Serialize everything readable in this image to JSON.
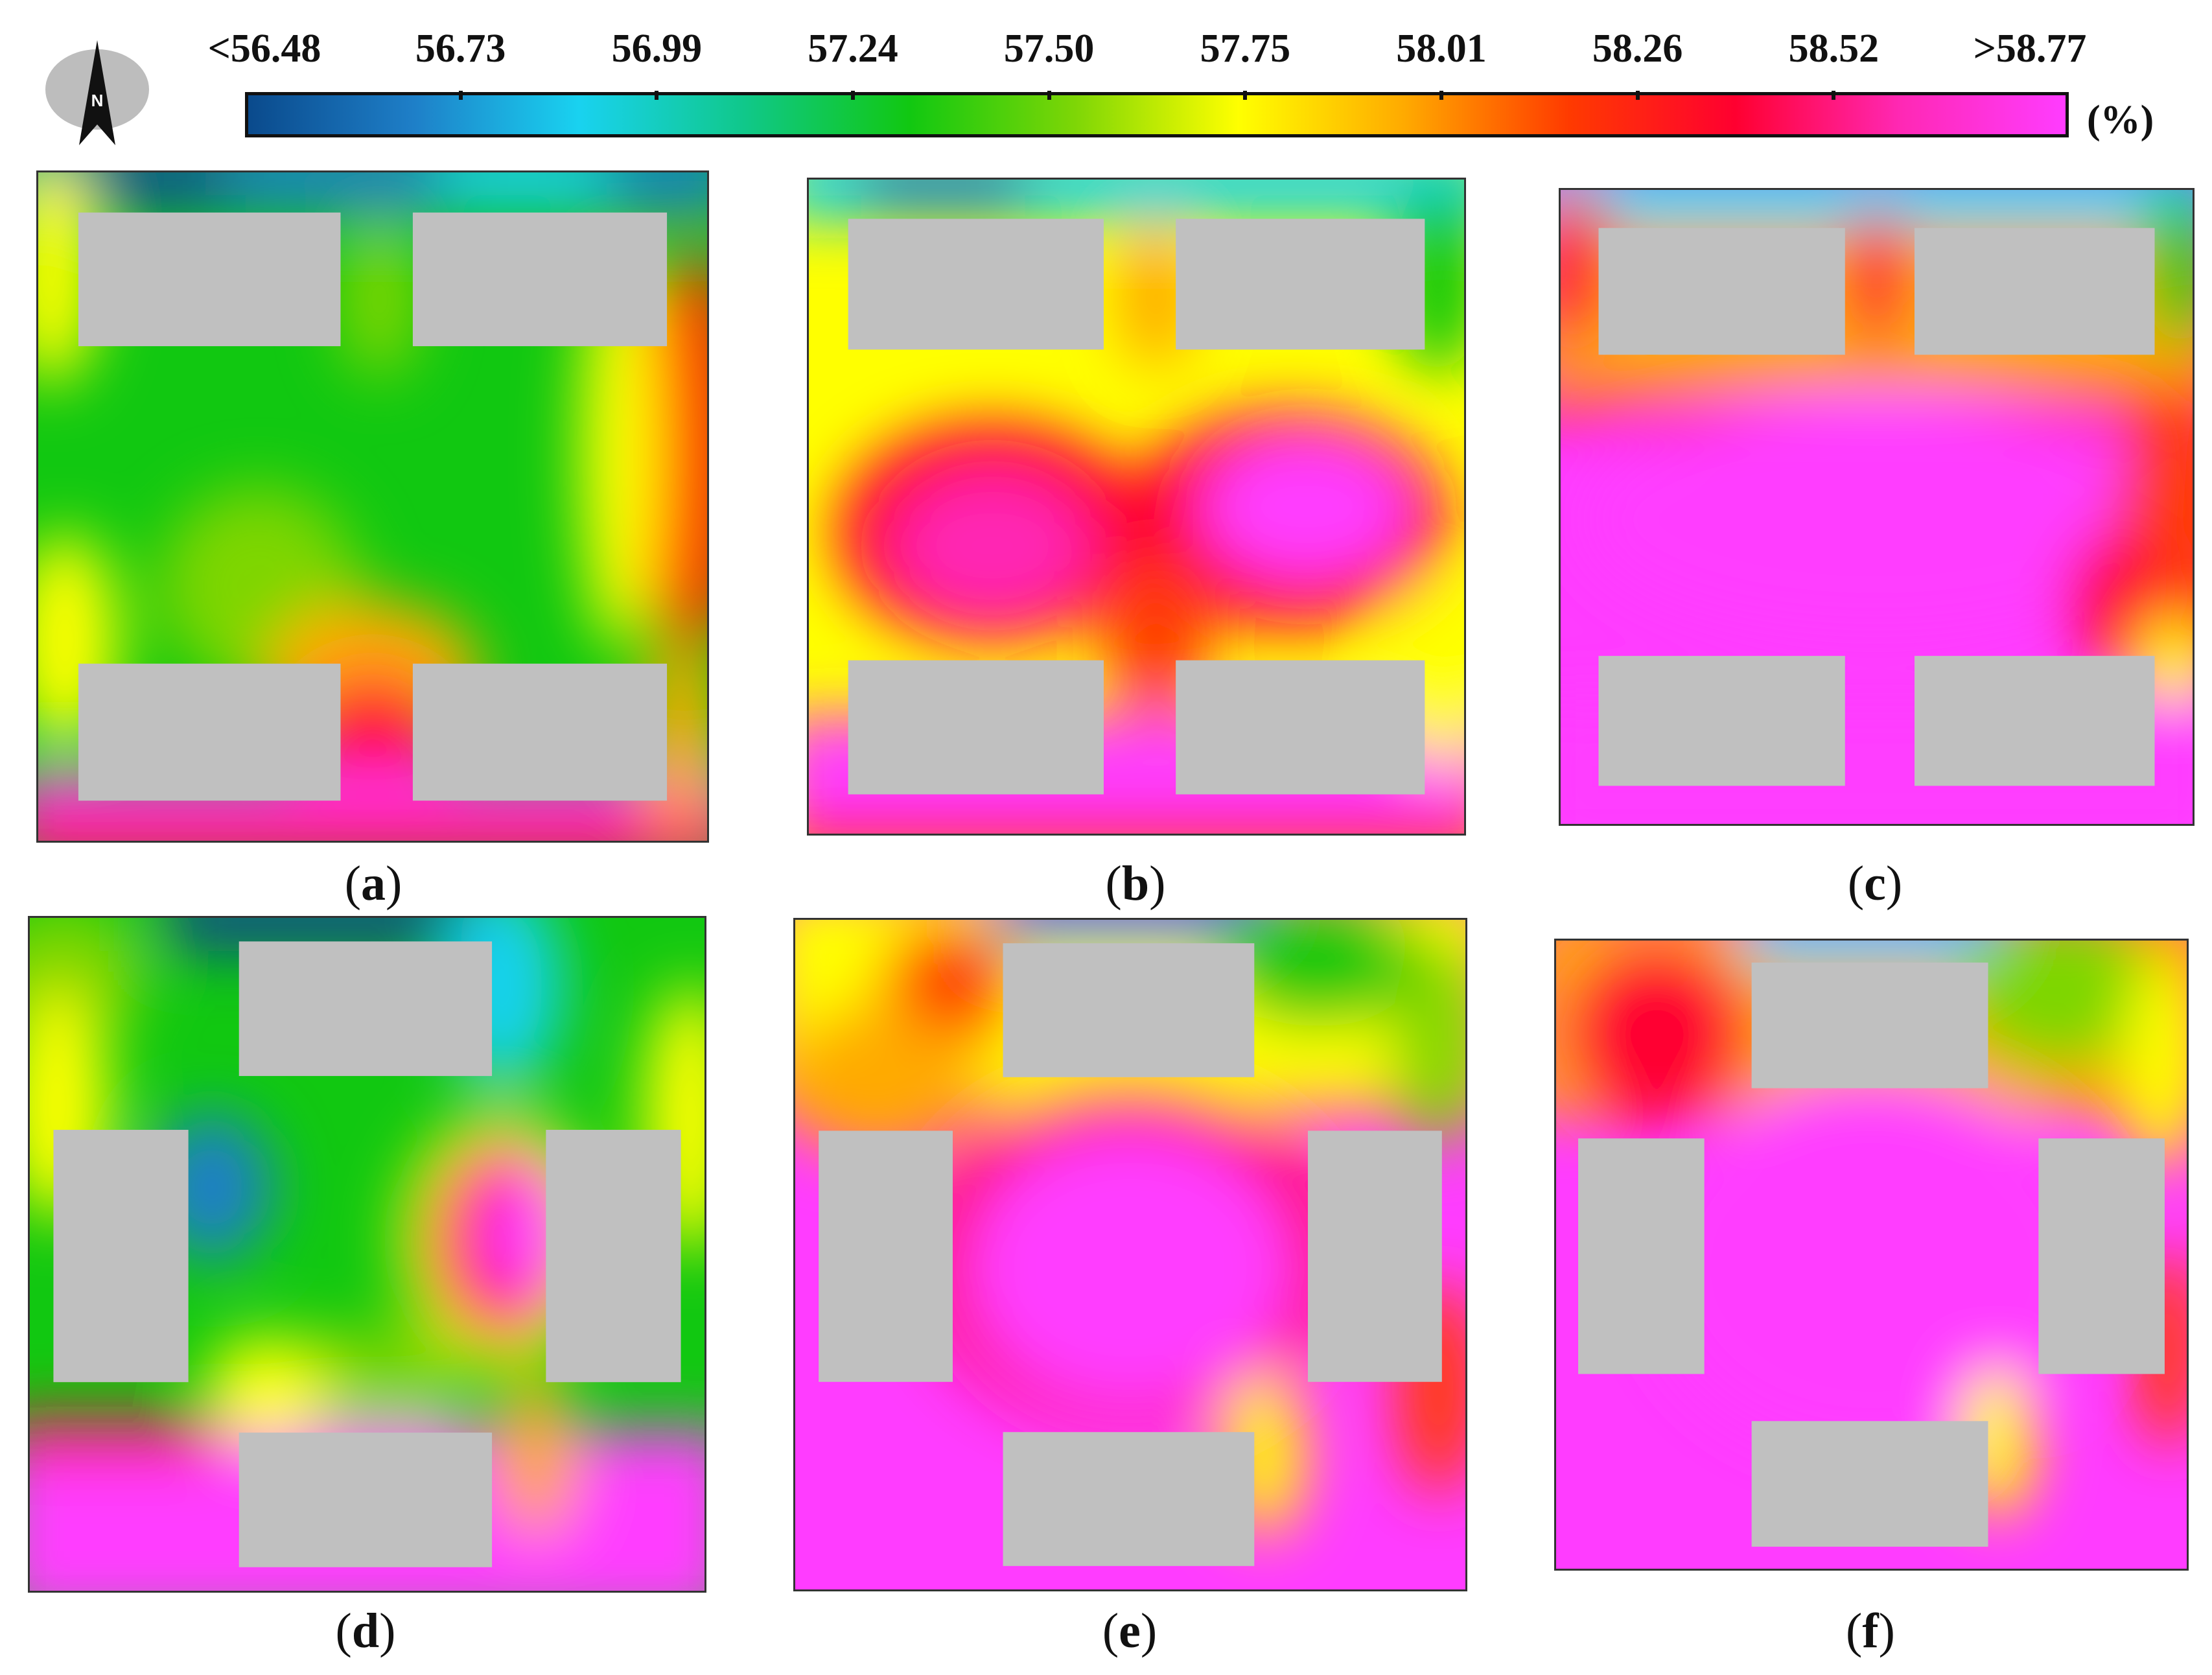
{
  "chart_data": {
    "type": "heatmap",
    "unit": "(%)",
    "colorbar": {
      "tick_labels": [
        "<56.48",
        "56.73",
        "56.99",
        "57.24",
        "57.50",
        "57.75",
        "58.01",
        "58.26",
        "58.52",
        ">58.77"
      ],
      "min": 56.48,
      "max": 58.77,
      "colors": [
        "#0a4a8c",
        "#1e7fc8",
        "#19d2f0",
        "#10c88a",
        "#11c811",
        "#7ed606",
        "#ffff00",
        "#ffaa00",
        "#ff3a00",
        "#ff0030",
        "#ff28b4",
        "#ff3cff"
      ]
    },
    "compass": {
      "label": "N",
      "icon": "north-arrow-icon"
    },
    "panels": [
      {
        "caption_open": "(",
        "caption_letter": "a",
        "caption_close": ")",
        "buildings": 4,
        "layout": "two rows",
        "low_zone": "north edge",
        "high_zone": "south edge"
      },
      {
        "caption_open": "(",
        "caption_letter": "b",
        "caption_close": ")",
        "buildings": 4,
        "layout": "two rows",
        "low_zone": "north edge",
        "high_zone": "centre and south"
      },
      {
        "caption_open": "(",
        "caption_letter": "c",
        "caption_close": ")",
        "buildings": 4,
        "layout": "two rows",
        "low_zone": "north edge",
        "high_zone": "centre and south"
      },
      {
        "caption_open": "(",
        "caption_letter": "d",
        "caption_close": ")",
        "buildings": 4,
        "layout": "enclosed",
        "low_zone": "north and west",
        "high_zone": "south"
      },
      {
        "caption_open": "(",
        "caption_letter": "e",
        "caption_close": ")",
        "buildings": 4,
        "layout": "enclosed",
        "low_zone": "north edge",
        "high_zone": "courtyard and south"
      },
      {
        "caption_open": "(",
        "caption_letter": "f",
        "caption_close": ")",
        "buildings": 4,
        "layout": "enclosed",
        "low_zone": "north edge",
        "high_zone": "courtyard and south"
      }
    ],
    "building_color": "#c0c0c0"
  }
}
